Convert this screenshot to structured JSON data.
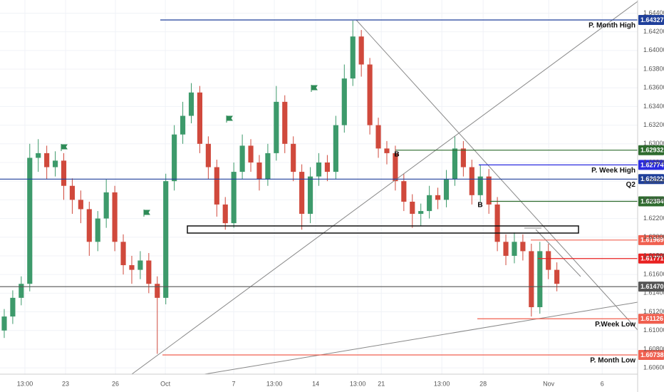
{
  "chart_data": {
    "type": "candlestick",
    "up_color": "#3d9a6b",
    "down_color": "#d0493c",
    "grid": true,
    "xlim": [
      -0.5,
      74.5
    ],
    "ylim": [
      1.60532,
      1.64541
    ],
    "open": [
      1.61,
      1.6115,
      1.6135,
      1.615,
      1.6285,
      1.629,
      1.6275,
      1.6282,
      1.6255,
      1.624,
      1.623,
      1.6195,
      1.622,
      1.6248,
      1.6195,
      1.617,
      1.6165,
      1.6175,
      1.615,
      1.6135,
      1.626,
      1.631,
      1.633,
      1.6355,
      1.63,
      1.6275,
      1.6235,
      1.6215,
      1.627,
      1.6298,
      1.628,
      1.6262,
      1.629,
      1.6345,
      1.63,
      1.627,
      1.6225,
      1.6265,
      1.628,
      1.627,
      1.632,
      1.637,
      1.6415,
      1.6385,
      1.632,
      1.6295,
      1.629,
      1.626,
      1.6238,
      1.6225,
      1.6228,
      1.6245,
      1.624,
      1.6262,
      1.6295,
      1.6275,
      1.6245,
      1.6265,
      1.6235,
      1.6195,
      1.618,
      1.6195,
      1.6185,
      1.6125,
      1.6185,
      1.6165
    ],
    "high": [
      1.6123,
      1.6143,
      1.6158,
      1.63,
      1.6305,
      1.6298,
      1.6292,
      1.629,
      1.6263,
      1.625,
      1.6238,
      1.6228,
      1.6262,
      1.6255,
      1.6203,
      1.618,
      1.6185,
      1.6183,
      1.6158,
      1.6268,
      1.632,
      1.6345,
      1.6365,
      1.6362,
      1.6308,
      1.6283,
      1.6243,
      1.628,
      1.631,
      1.6305,
      1.6288,
      1.63,
      1.6362,
      1.6352,
      1.6308,
      1.6278,
      1.6275,
      1.629,
      1.6288,
      1.633,
      1.6385,
      1.6432,
      1.6422,
      1.6392,
      1.6328,
      1.6303,
      1.6298,
      1.6268,
      1.6246,
      1.6236,
      1.6255,
      1.6253,
      1.6272,
      1.6308,
      1.6303,
      1.6283,
      1.6278,
      1.6273,
      1.6243,
      1.6203,
      1.6205,
      1.6203,
      1.6193,
      1.6195,
      1.6193,
      1.6173
    ],
    "low": [
      1.6092,
      1.6107,
      1.6127,
      1.6142,
      1.627,
      1.6262,
      1.6265,
      1.624,
      1.6225,
      1.6215,
      1.618,
      1.6185,
      1.621,
      1.6185,
      1.616,
      1.615,
      1.6155,
      1.614,
      1.6075,
      1.6128,
      1.625,
      1.63,
      1.6322,
      1.629,
      1.6262,
      1.6222,
      1.6208,
      1.621,
      1.6262,
      1.627,
      1.625,
      1.6255,
      1.6282,
      1.629,
      1.626,
      1.6208,
      1.6215,
      1.6255,
      1.626,
      1.6262,
      1.6312,
      1.6362,
      1.6372,
      1.631,
      1.6285,
      1.6278,
      1.625,
      1.6228,
      1.621,
      1.6212,
      1.622,
      1.623,
      1.6232,
      1.6255,
      1.6265,
      1.6235,
      1.6238,
      1.6225,
      1.6185,
      1.617,
      1.6172,
      1.6175,
      1.6115,
      1.6118,
      1.6155,
      1.6142
    ],
    "close": [
      1.6115,
      1.6135,
      1.615,
      1.6285,
      1.629,
      1.6275,
      1.6282,
      1.6255,
      1.624,
      1.623,
      1.6195,
      1.622,
      1.6248,
      1.6195,
      1.617,
      1.6165,
      1.6175,
      1.615,
      1.6135,
      1.626,
      1.631,
      1.633,
      1.6355,
      1.63,
      1.6275,
      1.6235,
      1.6215,
      1.627,
      1.6298,
      1.628,
      1.6262,
      1.629,
      1.6345,
      1.63,
      1.627,
      1.6225,
      1.6265,
      1.628,
      1.627,
      1.632,
      1.637,
      1.6415,
      1.6385,
      1.632,
      1.6295,
      1.629,
      1.626,
      1.6238,
      1.6225,
      1.6228,
      1.6245,
      1.624,
      1.6262,
      1.6295,
      1.6275,
      1.6245,
      1.6265,
      1.6235,
      1.6195,
      1.618,
      1.6195,
      1.6185,
      1.6125,
      1.6185,
      1.6165,
      1.615
    ],
    "xticks": [
      {
        "value": 2.43,
        "label": "13:00"
      },
      {
        "value": 7.21,
        "label": "23"
      },
      {
        "value": 13.08,
        "label": "26"
      },
      {
        "value": 18.95,
        "label": "Oct"
      },
      {
        "value": 26.99,
        "label": "7"
      },
      {
        "value": 31.77,
        "label": "13:00"
      },
      {
        "value": 36.63,
        "label": "14"
      },
      {
        "value": 41.58,
        "label": "13:00"
      },
      {
        "value": 44.35,
        "label": "21"
      },
      {
        "value": 51.47,
        "label": "13:00"
      },
      {
        "value": 56.33,
        "label": "28"
      },
      {
        "value": 64.04,
        "label": "Nov"
      },
      {
        "value": 70.33,
        "label": "6"
      }
    ],
    "yticks": [
      {
        "value": 1.606,
        "label": "1.60600"
      },
      {
        "value": 1.608,
        "label": "1.60800"
      },
      {
        "value": 1.61,
        "label": "1.61000"
      },
      {
        "value": 1.612,
        "label": "1.61200"
      },
      {
        "value": 1.614,
        "label": "1.61400"
      },
      {
        "value": 1.616,
        "label": "1.61600"
      },
      {
        "value": 1.618,
        "label": "1.61800"
      },
      {
        "value": 1.62,
        "label": "1.62000"
      },
      {
        "value": 1.622,
        "label": "1.62200"
      },
      {
        "value": 1.624,
        "label": "1.62400"
      },
      {
        "value": 1.626,
        "label": "1.62600"
      },
      {
        "value": 1.628,
        "label": "1.62800"
      },
      {
        "value": 1.63,
        "label": "1.63000"
      },
      {
        "value": 1.632,
        "label": "1.63200"
      },
      {
        "value": 1.634,
        "label": "1.63400"
      },
      {
        "value": 1.636,
        "label": "1.63600"
      },
      {
        "value": 1.638,
        "label": "1.63800"
      },
      {
        "value": 1.64,
        "label": "1.64000"
      },
      {
        "value": 1.642,
        "label": "1.64200"
      },
      {
        "value": 1.644,
        "label": "1.64400"
      }
    ],
    "levels": [
      {
        "price": {
          "value": 1.64327,
          "label": "1.64327"
        },
        "color": "#1f3f9a",
        "text": "P. Month High"
      },
      {
        "price": {
          "value": 1.62932,
          "label": "1.62932"
        },
        "color": "#2e6b2e"
      },
      {
        "price": {
          "value": 1.62774,
          "label": "1.62774"
        },
        "color": "#2a2ae0",
        "text": "P. Week High"
      },
      {
        "price": {
          "value": 1.62622,
          "label": "1.62622"
        },
        "color": "#1f3f9a",
        "text": "Q2"
      },
      {
        "price": {
          "value": 1.62384,
          "label": "1.62384"
        },
        "color": "#2e6b2e"
      },
      {
        "price": {
          "value": 1.61969,
          "label": "1.61969"
        },
        "color": "#f06050"
      },
      {
        "price": {
          "value": 1.61771,
          "label": "1.61771"
        },
        "color": "#e82020"
      },
      {
        "price": {
          "value": 1.6147,
          "label": "1.61470"
        },
        "color": "#555555"
      },
      {
        "price": {
          "value": 1.61126,
          "label": "1.61126"
        },
        "color": "#f06050",
        "text": "P.Week Low"
      },
      {
        "price": {
          "value": 1.60738,
          "label": "1.60738"
        },
        "color": "#f06050",
        "text": "P. Month Low"
      }
    ],
    "annotations": [
      "B",
      "B"
    ]
  }
}
